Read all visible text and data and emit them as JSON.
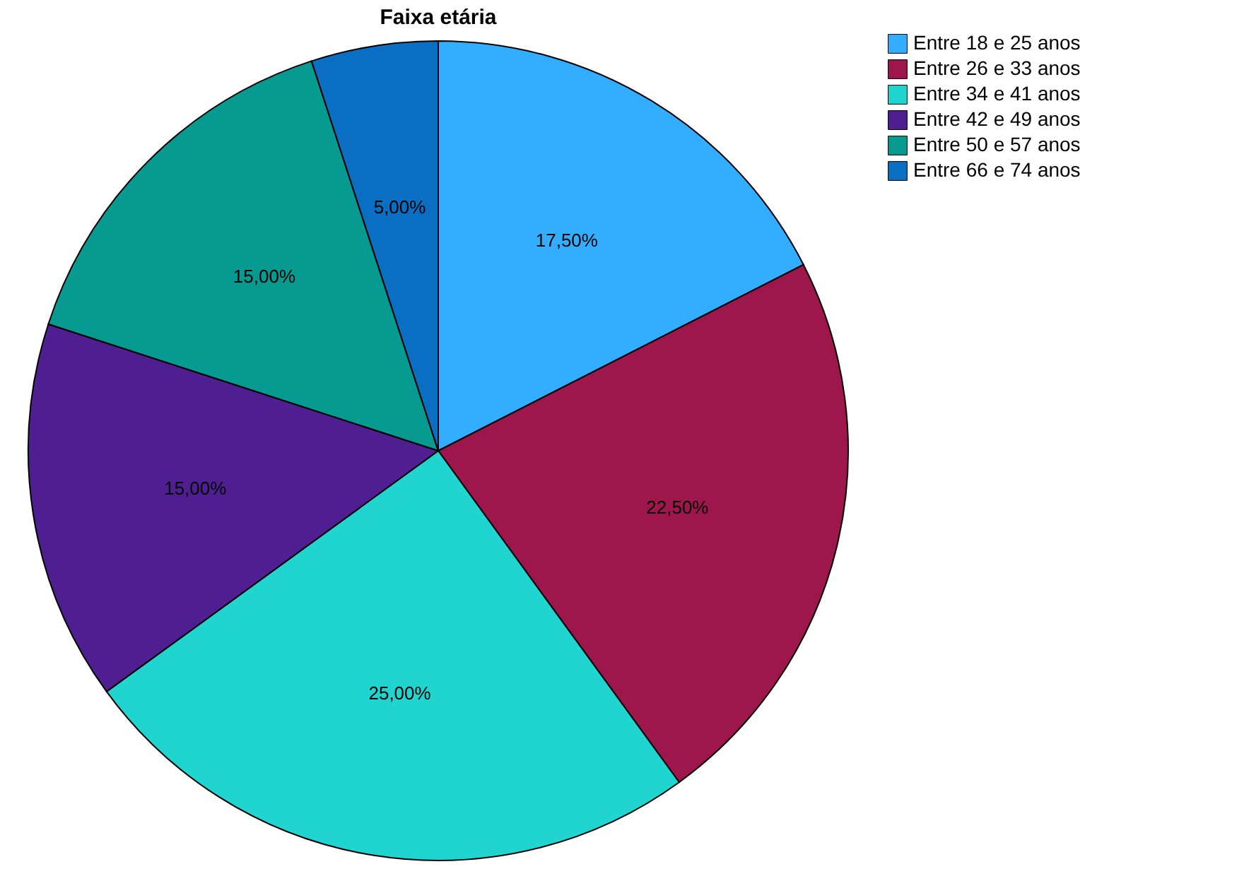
{
  "chart_data": {
    "type": "pie",
    "title": "Faixa etária",
    "categories": [
      "Entre 18 e 25 anos",
      "Entre 26 e 33 anos",
      "Entre 34 e 41 anos",
      "Entre 42 e 49 anos",
      "Entre 50 e 57 anos",
      "Entre 66 e 74 anos"
    ],
    "values": [
      17.5,
      22.5,
      25,
      15,
      15,
      5
    ],
    "value_labels": [
      "17,50%",
      "22,50%",
      "25,00%",
      "15,00%",
      "15,00%",
      "5,00%"
    ],
    "colors": [
      "#33adff",
      "#9e174c",
      "#20d4d0",
      "#4f1f91",
      "#079a90",
      "#0a6fc3"
    ],
    "legend": "right"
  }
}
